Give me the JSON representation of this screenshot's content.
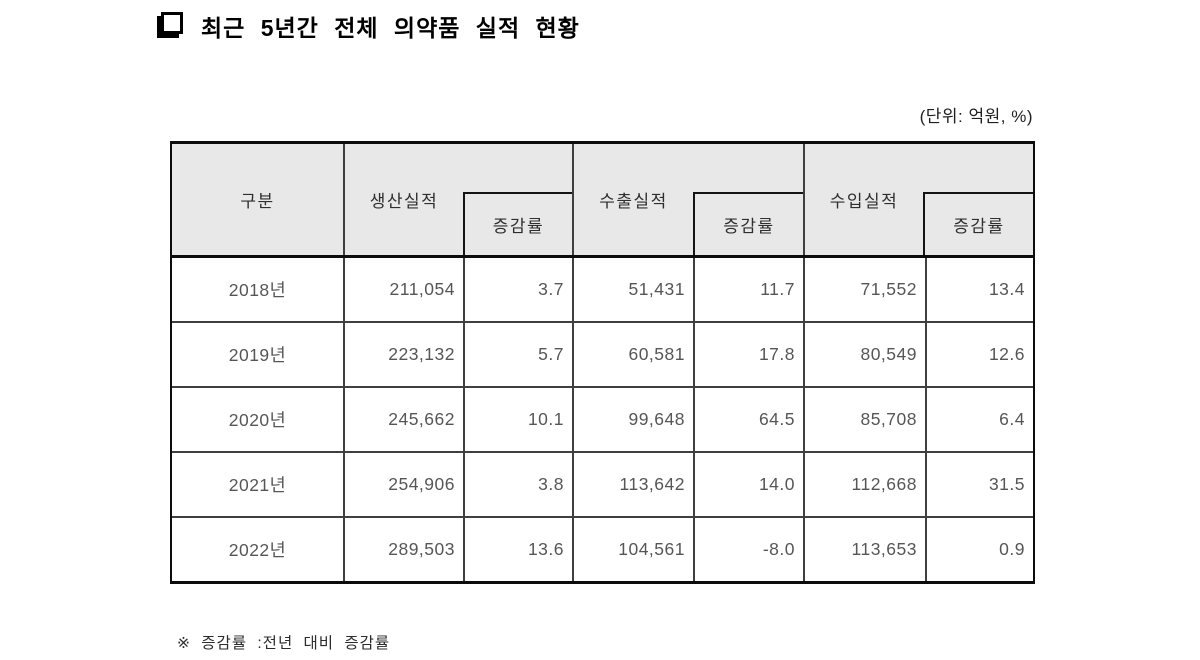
{
  "page": {
    "title": "최근 5년간 전체 의약품 실적 현황",
    "unit_note": "(단위: 억원, %)",
    "footnote": "※ 증감률 :전년 대비 증감률"
  },
  "table": {
    "corner_header": "구분",
    "groups": [
      {
        "label": "생산실적",
        "sub_label": "증감률"
      },
      {
        "label": "수출실적",
        "sub_label": "증감률"
      },
      {
        "label": "수입실적",
        "sub_label": "증감률"
      }
    ],
    "rows": [
      [
        "2018년",
        "211,054",
        "3.7",
        "51,431",
        "11.7",
        "71,552",
        "13.4"
      ],
      [
        "2019년",
        "223,132",
        "5.7",
        "60,581",
        "17.8",
        "80,549",
        "12.6"
      ],
      [
        "2020년",
        "245,662",
        "10.1",
        "99,648",
        "64.5",
        "85,708",
        "6.4"
      ],
      [
        "2021년",
        "254,906",
        "3.8",
        "113,642",
        "14.0",
        "112,668",
        "31.5"
      ],
      [
        "2022년",
        "289,503",
        "13.6",
        "104,561",
        "-8.0",
        "113,653",
        "0.9"
      ]
    ]
  },
  "chart_data": {
    "type": "table",
    "title": "최근 5년간 전체 의약품 실적 현황",
    "unit": "억원, %",
    "columns": [
      "구분",
      "생산실적",
      "생산 증감률",
      "수출실적",
      "수출 증감률",
      "수입실적",
      "수입 증감률"
    ],
    "rows": [
      [
        "2018년",
        211054,
        3.7,
        51431,
        11.7,
        71552,
        13.4
      ],
      [
        "2019년",
        223132,
        5.7,
        60581,
        17.8,
        80549,
        12.6
      ],
      [
        "2020년",
        245662,
        10.1,
        99648,
        64.5,
        85708,
        6.4
      ],
      [
        "2021년",
        254906,
        3.8,
        113642,
        14.0,
        112668,
        31.5
      ],
      [
        "2022년",
        289503,
        13.6,
        104561,
        -8.0,
        113653,
        0.9
      ]
    ]
  }
}
